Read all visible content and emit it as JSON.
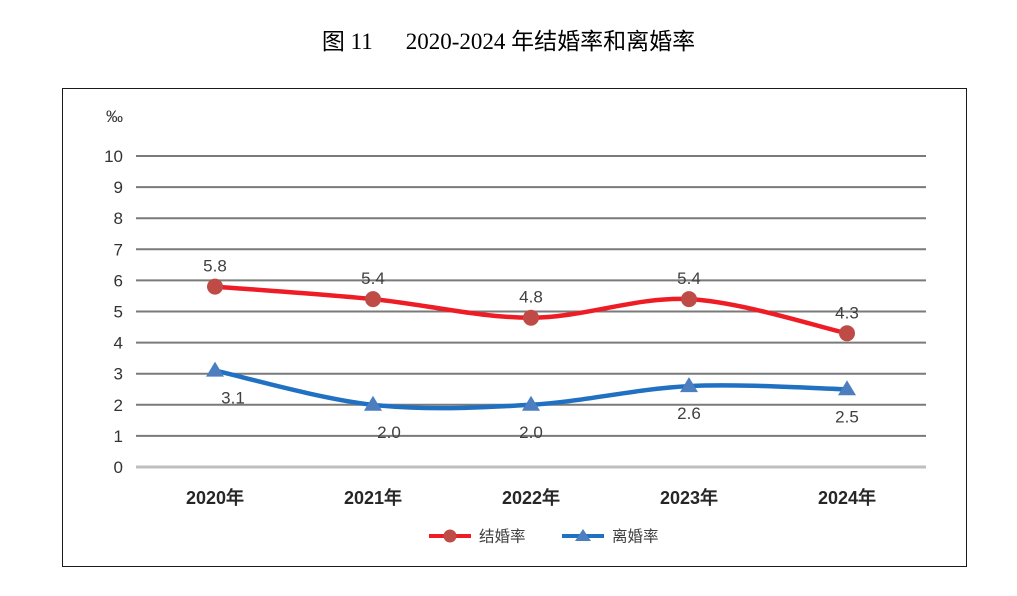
{
  "title": {
    "figure_label": "图 11",
    "text": "2020-2024 年结婚率和离婚率"
  },
  "chart_data": {
    "type": "line",
    "unit_label": "‰",
    "categories": [
      "2020年",
      "2021年",
      "2022年",
      "2023年",
      "2024年"
    ],
    "series": [
      {
        "id": "marriage-rate",
        "name": "结婚率",
        "values": [
          5.8,
          5.4,
          4.8,
          5.4,
          4.3
        ],
        "labels": [
          "5.8",
          "5.4",
          "4.8",
          "5.4",
          "4.3"
        ],
        "line_color": "#ee1c25",
        "marker_color": "#bf4b47",
        "marker": "circle",
        "label_position": "above"
      },
      {
        "id": "divorce-rate",
        "name": "离婚率",
        "values": [
          3.1,
          2.0,
          2.0,
          2.6,
          2.5
        ],
        "labels": [
          "3.1",
          "2.0",
          "2.0",
          "2.6",
          "2.5"
        ],
        "line_color": "#2171c2",
        "marker_color": "#4d7ebf",
        "marker": "triangle",
        "label_position": "below"
      }
    ],
    "y_axis": {
      "min": 0,
      "max": 10,
      "step": 1,
      "ticks": [
        "10",
        "9",
        "8",
        "7",
        "6",
        "5",
        "4",
        "3",
        "2",
        "1",
        "0"
      ]
    },
    "grid": true,
    "legend_position": "bottom",
    "gridline_color": "#7a7a7a",
    "axis_line_color": "#bfbfbf",
    "label_text_color": "#404040",
    "tick_text_color": "#333333",
    "x_label_text_color": "#262626"
  }
}
